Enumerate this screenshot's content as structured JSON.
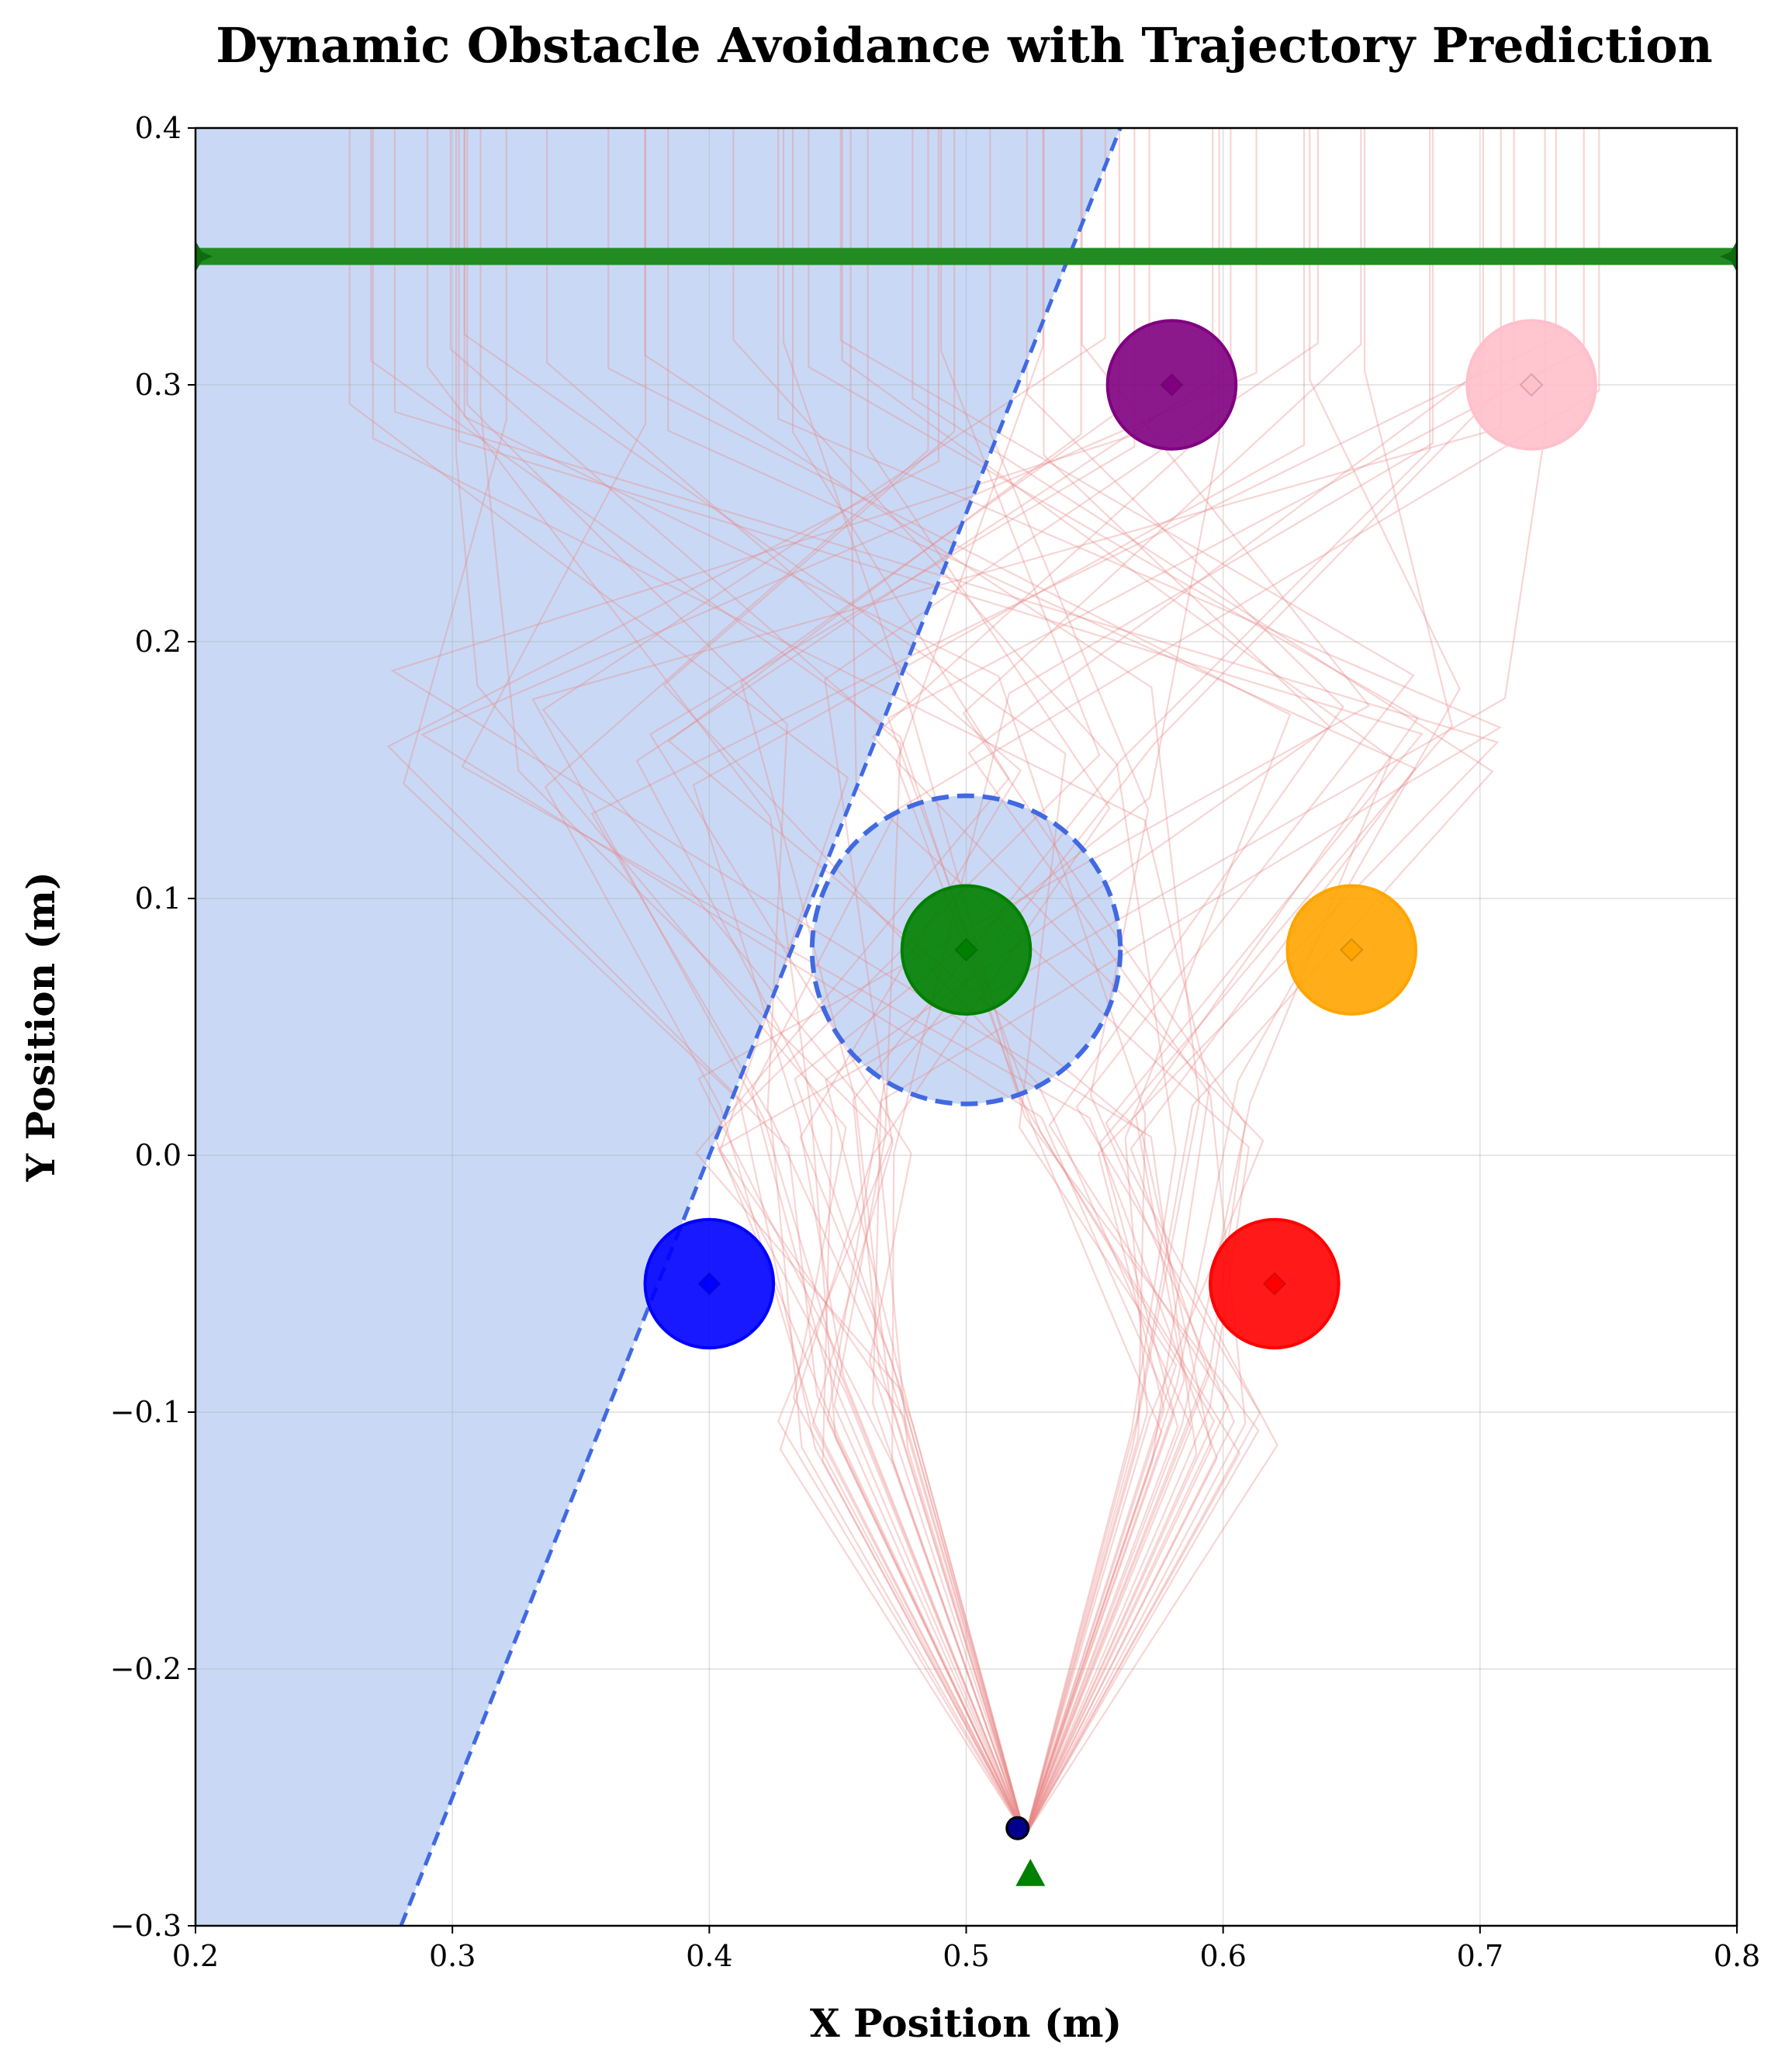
{
  "chart_data": {
    "type": "scatter",
    "title": "Dynamic Obstacle Avoidance with Trajectory Prediction",
    "xlabel": "X Position (m)",
    "ylabel": "Y Position (m)",
    "xlim": [
      0.2,
      0.8
    ],
    "ylim": [
      -0.3,
      0.4
    ],
    "xticks": [
      0.2,
      0.3,
      0.4,
      0.5,
      0.6,
      0.7,
      0.8
    ],
    "xtick_labels": [
      "0.2",
      "0.3",
      "0.4",
      "0.5",
      "0.6",
      "0.7",
      "0.8"
    ],
    "yticks": [
      -0.3,
      -0.2,
      -0.1,
      0.0,
      0.1,
      0.2,
      0.3,
      0.4
    ],
    "ytick_labels": [
      "−0.3",
      "−0.2",
      "−0.1",
      "0.0",
      "0.1",
      "0.2",
      "0.3",
      "0.4"
    ],
    "grid": true,
    "obstacles": [
      {
        "x": 0.4,
        "y": -0.05,
        "radius": 0.025,
        "color": "#0000ff"
      },
      {
        "x": 0.62,
        "y": -0.05,
        "radius": 0.025,
        "color": "#ff0000"
      },
      {
        "x": 0.5,
        "y": 0.08,
        "radius": 0.025,
        "color": "#008000"
      },
      {
        "x": 0.65,
        "y": 0.08,
        "radius": 0.025,
        "color": "#ffa500"
      },
      {
        "x": 0.58,
        "y": 0.3,
        "radius": 0.025,
        "color": "#800080"
      },
      {
        "x": 0.72,
        "y": 0.3,
        "radius": 0.025,
        "color": "#ffc0cb"
      }
    ],
    "safety_circle": {
      "x": 0.5,
      "y": 0.08,
      "radius": 0.06,
      "color": "#4169e1"
    },
    "half_plane_line": {
      "x1": 0.28,
      "y1": -0.3,
      "x2": 0.56,
      "y2": 0.4,
      "color": "#4169e1",
      "fill": "#c9d9f5"
    },
    "goal_line": {
      "y": 0.35,
      "x1": 0.2,
      "x2": 0.8,
      "color": "#228b22"
    },
    "start_marker": {
      "x": 0.525,
      "y": -0.28,
      "color": "#008000"
    },
    "current_position": {
      "x": 0.52,
      "y": -0.262,
      "color": "#00008b"
    },
    "trajectory_color": "#e88888",
    "trajectory_count": 60
  }
}
